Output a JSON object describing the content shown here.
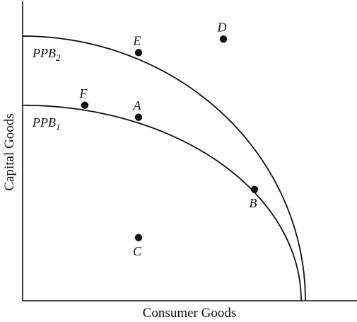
{
  "chart_data": {
    "type": "line",
    "title": "",
    "xlabel": "Consumer Goods",
    "ylabel": "Capital Goods",
    "grid": false,
    "legend": "none",
    "line_color": "#111111",
    "xlim": [
      0,
      100
    ],
    "ylim": [
      0,
      100
    ],
    "curves": [
      {
        "id": "ppb2",
        "name_main": "PPB",
        "name_sub": "2",
        "x_intercept": 100,
        "y_intercept": 88
      },
      {
        "id": "ppb1",
        "name_main": "PPB",
        "name_sub": "1",
        "x_intercept": 98.5,
        "y_intercept": 65
      }
    ],
    "points": [
      {
        "label": "E",
        "x": 41,
        "y": 82.5,
        "label_pos": "above"
      },
      {
        "label": "D",
        "x": 71,
        "y": 87,
        "label_pos": "above"
      },
      {
        "label": "F",
        "x": 22,
        "y": 65,
        "label_pos": "above"
      },
      {
        "label": "A",
        "x": 41,
        "y": 61,
        "label_pos": "above"
      },
      {
        "label": "B",
        "x": 82,
        "y": 37,
        "label_pos": "below"
      },
      {
        "label": "C",
        "x": 41,
        "y": 21,
        "label_pos": "below"
      }
    ]
  }
}
